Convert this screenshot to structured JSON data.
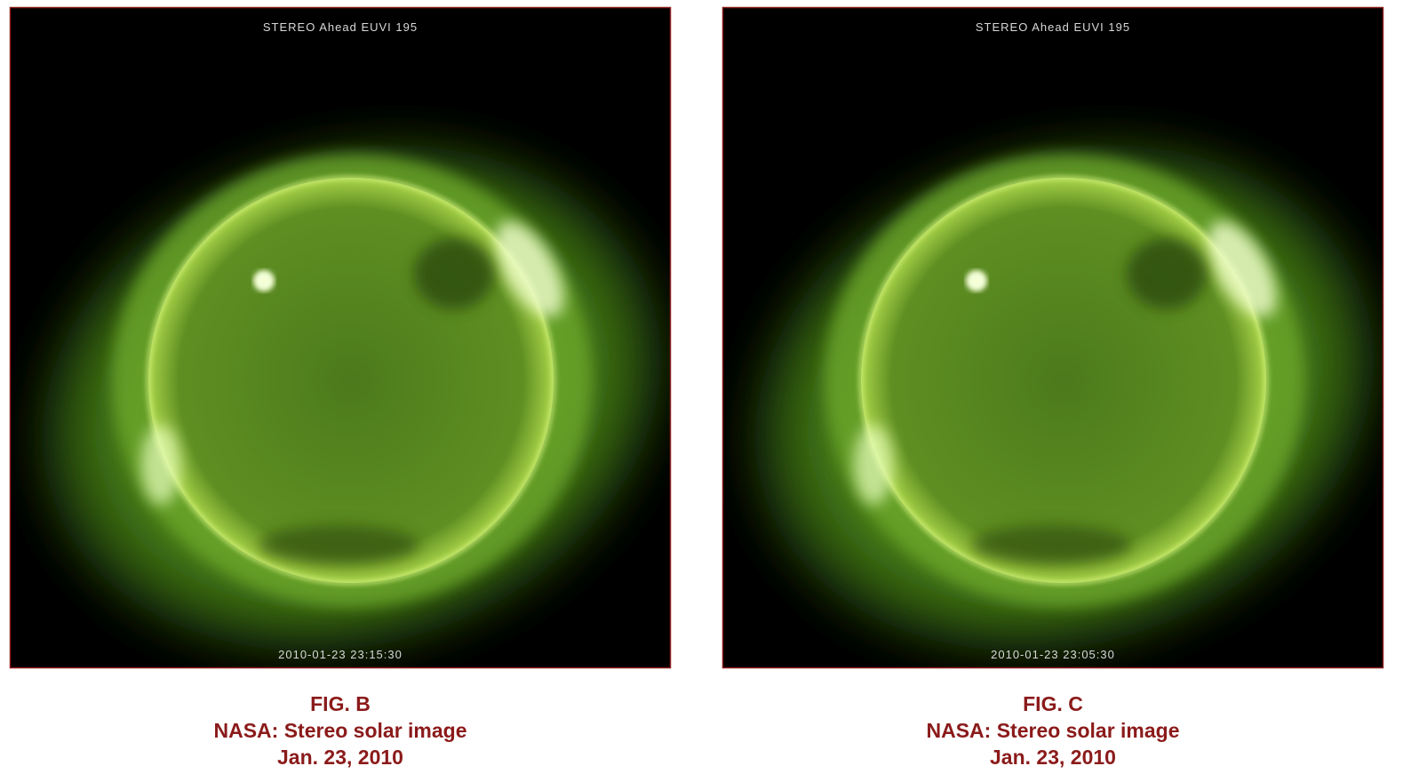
{
  "figures": [
    {
      "image_header": "STEREO Ahead EUVI 195",
      "image_timestamp": "2010-01-23 23:15:30",
      "caption": [
        "FIG. B",
        "NASA: Stereo solar image",
        "Jan. 23, 2010"
      ]
    },
    {
      "image_header": "STEREO Ahead EUVI 195",
      "image_timestamp": "2010-01-23 23:05:30",
      "caption": [
        "FIG. C",
        "NASA: Stereo solar image",
        "Jan. 23, 2010"
      ]
    }
  ]
}
